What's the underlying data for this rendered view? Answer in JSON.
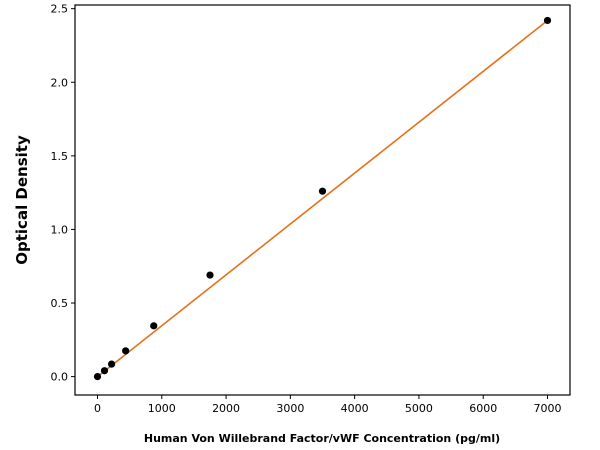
{
  "chart_data": {
    "type": "scatter",
    "title": "",
    "xlabel": "Human Von Willebrand Factor/vWF Concentration (pg/ml)",
    "ylabel": "Optical Density",
    "xlim": [
      -350,
      7350
    ],
    "ylim": [
      -0.125,
      2.525
    ],
    "x_ticks": [
      0,
      1000,
      2000,
      3000,
      4000,
      5000,
      6000,
      7000
    ],
    "y_ticks": [
      0.0,
      0.5,
      1.0,
      1.5,
      2.0,
      2.5
    ],
    "y_tick_labels": [
      "0.0",
      "0.5",
      "1.0",
      "1.5",
      "2.0",
      "2.5"
    ],
    "grid": false,
    "legend": "none",
    "series": [
      {
        "kind": "points",
        "color": "#000000",
        "x": [
          0,
          109,
          219,
          438,
          875,
          1750,
          3500,
          7000
        ],
        "y": [
          0.0,
          0.04,
          0.085,
          0.175,
          0.345,
          0.69,
          1.26,
          2.42
        ]
      },
      {
        "kind": "fit-line",
        "color": "#e8701a",
        "x": [
          0,
          7000
        ],
        "y": [
          0.0,
          2.42
        ]
      }
    ]
  }
}
